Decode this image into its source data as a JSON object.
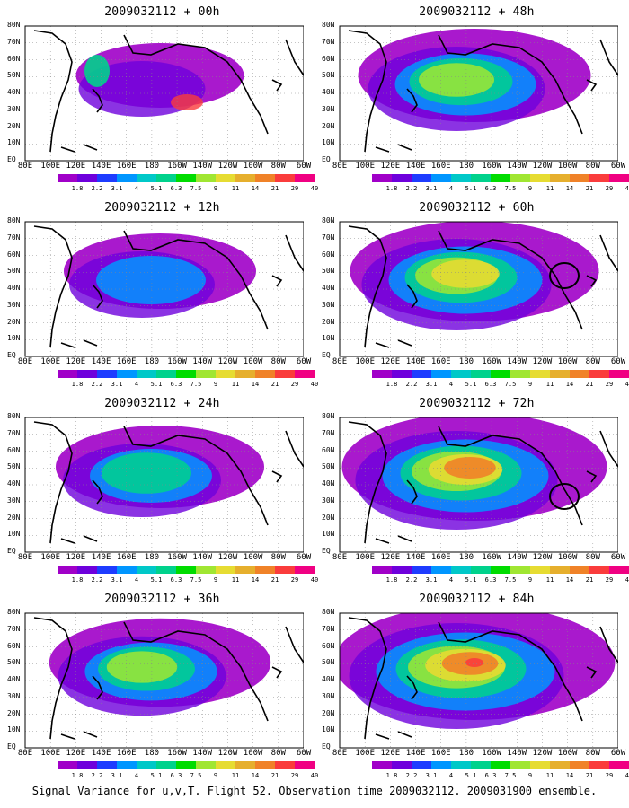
{
  "figure": {
    "caption": "Signal Variance for u,v,T. Flight 52. Observation time 2009032112. 2009031900 ensemble."
  },
  "panels": [
    {
      "title": "2009032112 + 00h",
      "intensity": 0.15,
      "circle": false
    },
    {
      "title": "2009032112 + 48h",
      "intensity": 0.55,
      "circle": false
    },
    {
      "title": "2009032112 + 12h",
      "intensity": 0.3,
      "circle": false
    },
    {
      "title": "2009032112 + 60h",
      "intensity": 0.65,
      "circle": true
    },
    {
      "title": "2009032112 + 24h",
      "intensity": 0.4,
      "circle": false
    },
    {
      "title": "2009032112 + 72h",
      "intensity": 0.75,
      "circle": true
    },
    {
      "title": "2009032112 + 36h",
      "intensity": 0.48,
      "circle": false
    },
    {
      "title": "2009032112 + 84h",
      "intensity": 0.85,
      "circle": false
    }
  ],
  "axes": {
    "lon_labels": [
      "80E",
      "100E",
      "120E",
      "140E",
      "160E",
      "180",
      "160W",
      "140W",
      "120W",
      "100W",
      "80W",
      "60W"
    ],
    "lat_labels": [
      "80N",
      "70N",
      "60N",
      "50N",
      "40N",
      "30N",
      "20N",
      "10N",
      "EQ"
    ]
  },
  "colorbar": {
    "labels": [
      "1.8",
      "2.2",
      "3.1",
      "4",
      "5.1",
      "6.3",
      "7.5",
      "9",
      "11",
      "14",
      "21",
      "29",
      "40"
    ],
    "colors": [
      "#a000c8",
      "#6e00dc",
      "#1e3cff",
      "#0096ff",
      "#00c8c8",
      "#00d28c",
      "#00dc00",
      "#a0e632",
      "#e6dc32",
      "#e6af2d",
      "#f08228",
      "#fa3c3c",
      "#f00082"
    ]
  }
}
